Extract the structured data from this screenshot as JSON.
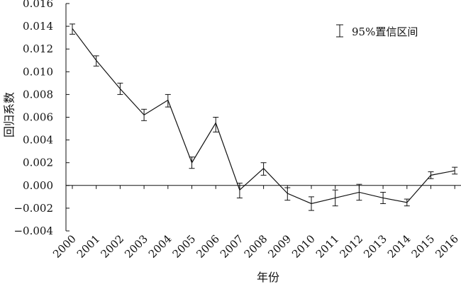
{
  "chart_data": {
    "type": "line",
    "title": "",
    "xlabel": "年份",
    "ylabel": "回归系数",
    "ylim": [
      -0.004,
      0.016
    ],
    "yticks": [
      "0.016",
      "0.014",
      "0.012",
      "0.010",
      "0.008",
      "0.006",
      "0.004",
      "0.002",
      "0.000",
      "−0.002",
      "−0.004"
    ],
    "ytick_values": [
      0.016,
      0.014,
      0.012,
      0.01,
      0.008,
      0.006,
      0.004,
      0.002,
      0.0,
      -0.002,
      -0.004
    ],
    "categories": [
      "2000",
      "2001",
      "2002",
      "2003",
      "2004",
      "2005",
      "2006",
      "2007",
      "2008",
      "2009",
      "2010",
      "2011",
      "2012",
      "2013",
      "2014",
      "2015",
      "2016"
    ],
    "series": [
      {
        "values": [
          0.0138,
          0.011,
          0.0085,
          0.0062,
          0.0075,
          0.002,
          0.0055,
          -0.0004,
          0.0015,
          -0.0007,
          -0.0016,
          -0.0011,
          -0.0006,
          -0.0011,
          -0.0015,
          0.0009,
          0.0013
        ],
        "ci_low": [
          0.0133,
          0.0105,
          0.008,
          0.0057,
          0.0069,
          0.0015,
          0.0047,
          -0.0011,
          0.0009,
          -0.0013,
          -0.0022,
          -0.0018,
          -0.0013,
          -0.0016,
          -0.0018,
          0.0006,
          0.001
        ],
        "ci_high": [
          0.0142,
          0.0114,
          0.009,
          0.0067,
          0.008,
          0.0025,
          0.006,
          0.0002,
          0.002,
          -0.0002,
          -0.001,
          -0.0004,
          0.0001,
          -0.0006,
          -0.0012,
          0.0012,
          0.0016
        ]
      }
    ],
    "legend": {
      "label": "95%置信区间",
      "position": "top-right"
    },
    "grid": false,
    "colors": {
      "line": "#111111",
      "axis": "#111111",
      "background": "#ffffff"
    }
  }
}
